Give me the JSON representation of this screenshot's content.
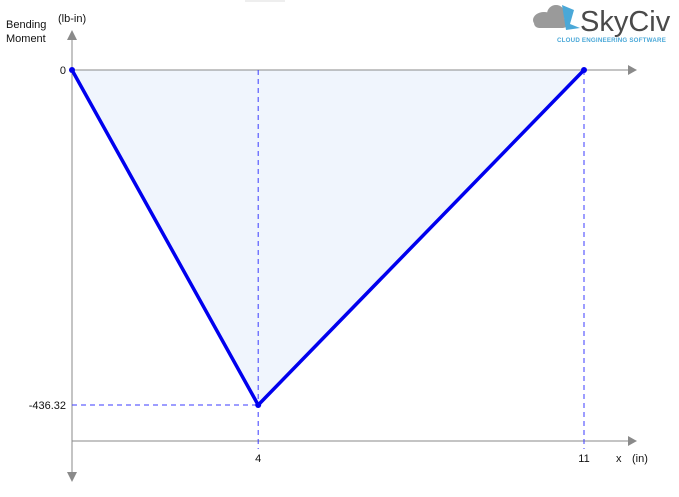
{
  "chart_data": {
    "type": "line",
    "title": "",
    "ylabel_line1": "Bending",
    "ylabel_line2": "Moment",
    "yunit": "(lb-in)",
    "xlabel": "x",
    "xunit": "(in)",
    "x": [
      0,
      4,
      11
    ],
    "y": [
      0,
      -436.32,
      0
    ],
    "x_tick_labels": [
      "4",
      "11"
    ],
    "y_tick_labels": [
      "0",
      "-436.32"
    ],
    "xlim": [
      0,
      11
    ],
    "ylim": [
      -436.32,
      0
    ],
    "grid": false,
    "fill_area": true,
    "legend": "none",
    "colors": {
      "line": "#0000ee",
      "fill": "#f0f5fd",
      "guides": "#3b3bff",
      "axes": "#8a8a8a"
    }
  },
  "branding": {
    "logo_name": "SkyCiv",
    "logo_tagline": "CLOUD ENGINEERING SOFTWARE",
    "logo_icon": "cloud-logo-icon"
  }
}
